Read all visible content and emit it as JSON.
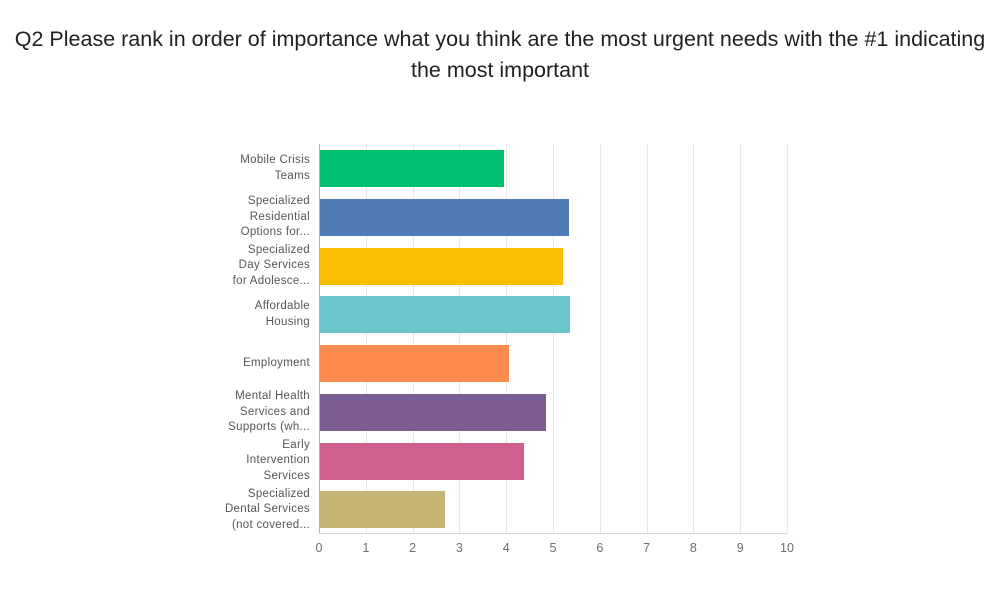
{
  "page": {
    "title_lines": [
      "Q2 Please rank in order of importance what you think are the most urgent needs with the #1 indicating the most important"
    ]
  },
  "chart_data": {
    "type": "bar",
    "orientation": "horizontal",
    "title": "Q2 Please rank in order of importance what you think are the most urgent needs with the #1 indicating the most important",
    "categories": [
      "Mobile Crisis Teams",
      "Specialized Residential Options for...",
      "Specialized Day Services for Adolesce...",
      "Affordable Housing",
      "Employment",
      "Mental Health Services and Supports (wh...",
      "Early Intervention Services",
      "Specialized Dental Services (not covered..."
    ],
    "category_label_lines": [
      [
        "Mobile Crisis",
        "Teams"
      ],
      [
        "Specialized",
        "Residential",
        "Options for..."
      ],
      [
        "Specialized",
        "Day Services",
        "for Adolesce..."
      ],
      [
        "Affordable",
        "Housing"
      ],
      [
        "Employment"
      ],
      [
        "Mental Health",
        "Services and",
        "Supports (wh..."
      ],
      [
        "Early",
        "Intervention",
        "Services"
      ],
      [
        "Specialized",
        "Dental Services",
        "(not covered..."
      ]
    ],
    "values": [
      3.94,
      5.31,
      5.19,
      5.35,
      4.04,
      4.82,
      4.35,
      2.67
    ],
    "bar_colors": [
      "#00BF6F",
      "#507CB6",
      "#F8BE00",
      "#6BC6CB",
      "#FF8A4F",
      "#7B5D92",
      "#D05F8F",
      "#C6B472"
    ],
    "xlabel": "",
    "ylabel": "",
    "xlim": [
      0,
      10
    ],
    "xticks": [
      0,
      1,
      2,
      3,
      4,
      5,
      6,
      7,
      8,
      9,
      10
    ],
    "grid": "vertical",
    "legend": "none",
    "layout_colors": {
      "gridline": "#e9e9e9",
      "zero_line": "#b3b3b3",
      "axis_line": "#d9d9d9",
      "tick_label": "#6e6e6e",
      "category_label": "#53565a",
      "title": "#212121",
      "background": "#ffffff"
    }
  }
}
